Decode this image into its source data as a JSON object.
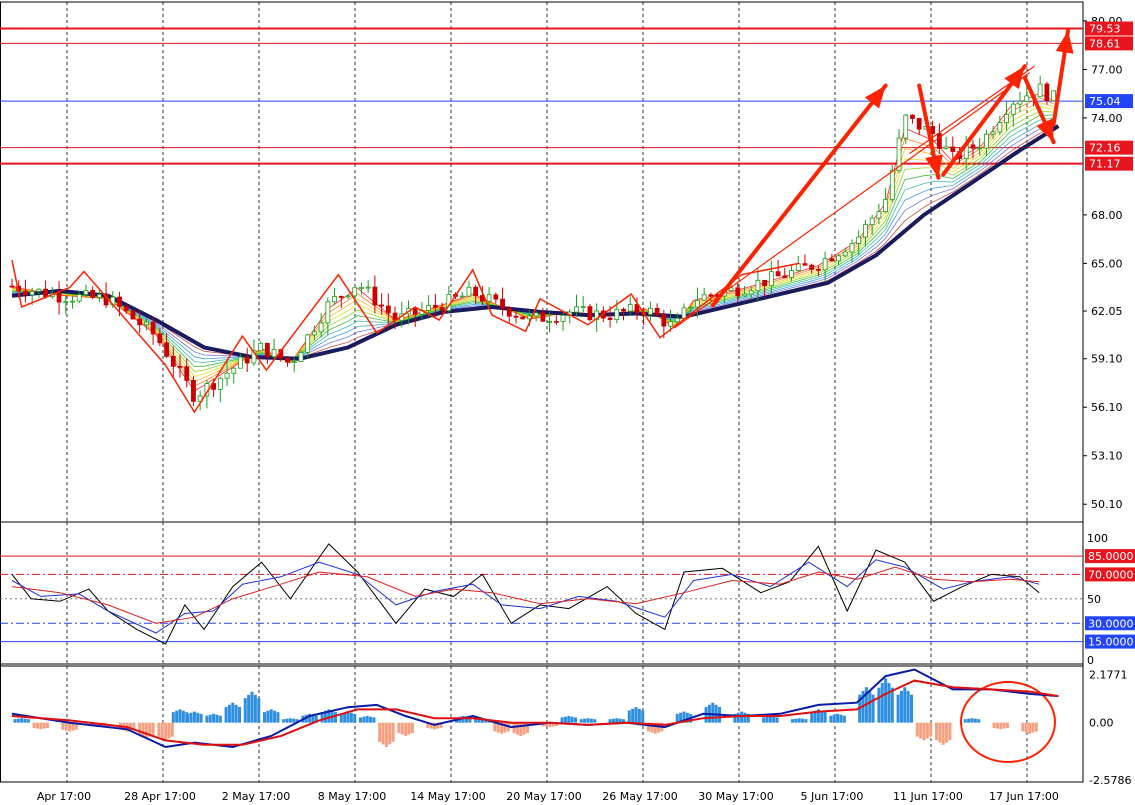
{
  "colors": {
    "background": "#ffffff",
    "grid": "#000000",
    "bull": "#1a9e1a",
    "bear": "#cc0000",
    "baseline_ma": "#1a1a5e",
    "annotation": "#ff2200",
    "level_red": "#e8141e",
    "level_blue": "#2244ff",
    "stoch_main": "#000000",
    "stoch_signal1": "#2030e0",
    "stoch_signal2": "#e02020",
    "macd_pos": "#2e8fe0",
    "macd_neg": "#f5a080",
    "macd_line": "#0a1aa8",
    "macd_signal": "#e01010",
    "tag_red": "#e8141e",
    "tag_blue": "#2244ff"
  },
  "price_axis": {
    "ticks": [
      "80.00",
      "77.00",
      "74.00",
      "68.00",
      "65.00",
      "62.05",
      "59.10",
      "56.10",
      "53.10",
      "50.10"
    ],
    "tick_values": [
      80.0,
      77.0,
      74.0,
      68.0,
      65.0,
      62.05,
      59.1,
      56.1,
      53.1,
      50.1
    ]
  },
  "price_tags": [
    {
      "label": "79.53",
      "value": 79.53,
      "color": "tag_red"
    },
    {
      "label": "78.61",
      "value": 78.61,
      "color": "tag_red"
    },
    {
      "label": "75.04",
      "value": 75.04,
      "color": "tag_blue"
    },
    {
      "label": "72.16",
      "value": 72.16,
      "color": "tag_red"
    },
    {
      "label": "71.17",
      "value": 71.17,
      "color": "tag_red"
    }
  ],
  "stoch_axis": {
    "ticks": [
      "100",
      "50",
      "0"
    ],
    "tick_values": [
      100,
      50,
      0
    ],
    "levels": [
      {
        "label": "85.0000",
        "value": 85,
        "color": "tag_red"
      },
      {
        "label": "70.0000",
        "value": 70,
        "color": "tag_red"
      },
      {
        "label": "30.0000",
        "value": 30,
        "color": "tag_blue"
      },
      {
        "label": "15.0000",
        "value": 15,
        "color": "tag_blue"
      }
    ]
  },
  "macd_axis": {
    "ticks": [
      "2.1771",
      "0.00",
      "-2.5786"
    ],
    "tick_values": [
      2.1771,
      0.0,
      -2.5786
    ]
  },
  "time_axis": {
    "labels": [
      "Apr 17:00",
      "28 Apr 17:00",
      "2 May 17:00",
      "8 May 17:00",
      "14 May 17:00",
      "20 May 17:00",
      "26 May 17:00",
      "30 May 17:00",
      "5 Jun 17:00",
      "11 Jun 17:00",
      "17 Jun 17:00"
    ]
  },
  "chart_data": [
    {
      "type": "candlestick",
      "panel": "price",
      "ylim": [
        49.0,
        80.8
      ],
      "x": [
        "Apr 17:00",
        "28 Apr 17:00",
        "2 May 17:00",
        "8 May 17:00",
        "14 May 17:00",
        "20 May 17:00",
        "26 May 17:00",
        "30 May 17:00",
        "5 Jun 17:00",
        "11 Jun 17:00",
        "17 Jun 17:00"
      ],
      "close_path": [
        [
          0,
          63.6
        ],
        [
          0.5,
          63.0
        ],
        [
          1.0,
          62.8
        ],
        [
          1.5,
          60.5
        ],
        [
          1.9,
          56.8
        ],
        [
          2.3,
          58.5
        ],
        [
          2.6,
          59.8
        ],
        [
          2.9,
          58.8
        ],
        [
          3.3,
          62.5
        ],
        [
          3.6,
          63.8
        ],
        [
          4.0,
          61.5
        ],
        [
          4.4,
          62.3
        ],
        [
          4.8,
          63.2
        ],
        [
          5.0,
          62.6
        ],
        [
          5.4,
          61.5
        ],
        [
          5.8,
          62.0
        ],
        [
          6.2,
          61.8
        ],
        [
          6.6,
          62.2
        ],
        [
          6.9,
          61.0
        ],
        [
          7.1,
          62.8
        ],
        [
          7.6,
          63.5
        ],
        [
          8.0,
          64.2
        ],
        [
          8.4,
          65.0
        ],
        [
          8.8,
          66.5
        ],
        [
          9.1,
          69.0
        ],
        [
          9.3,
          74.0
        ],
        [
          9.6,
          73.0
        ],
        [
          9.8,
          71.5
        ],
        [
          10.1,
          72.5
        ],
        [
          10.4,
          75.0
        ],
        [
          10.7,
          75.8
        ],
        [
          10.9,
          75.04
        ]
      ],
      "baseline_ma_path": [
        [
          0,
          63.0
        ],
        [
          0.5,
          63.3
        ],
        [
          1.0,
          63.0
        ],
        [
          1.5,
          61.5
        ],
        [
          2.0,
          59.8
        ],
        [
          2.5,
          59.2
        ],
        [
          3.0,
          59.1
        ],
        [
          3.5,
          59.8
        ],
        [
          4.0,
          61.2
        ],
        [
          4.5,
          62.0
        ],
        [
          5.0,
          62.3
        ],
        [
          5.5,
          62.0
        ],
        [
          6.0,
          61.8
        ],
        [
          6.5,
          61.9
        ],
        [
          7.0,
          61.7
        ],
        [
          7.5,
          62.4
        ],
        [
          8.0,
          63.1
        ],
        [
          8.5,
          63.8
        ],
        [
          9.0,
          65.5
        ],
        [
          9.5,
          68.0
        ],
        [
          10.0,
          70.0
        ],
        [
          10.5,
          72.0
        ],
        [
          10.9,
          73.5
        ]
      ]
    },
    {
      "type": "line",
      "panel": "stochastic",
      "ylim": [
        0,
        100
      ],
      "series": [
        {
          "color": "stoch_main",
          "values": [
            [
              0,
              70
            ],
            [
              0.2,
              50
            ],
            [
              0.5,
              48
            ],
            [
              0.8,
              58
            ],
            [
              1.0,
              40
            ],
            [
              1.3,
              25
            ],
            [
              1.6,
              13
            ],
            [
              1.8,
              45
            ],
            [
              2.0,
              25
            ],
            [
              2.3,
              60
            ],
            [
              2.6,
              80
            ],
            [
              2.9,
              50
            ],
            [
              3.3,
              95
            ],
            [
              3.6,
              72
            ],
            [
              4.0,
              30
            ],
            [
              4.3,
              58
            ],
            [
              4.6,
              52
            ],
            [
              4.9,
              70
            ],
            [
              5.2,
              30
            ],
            [
              5.5,
              45
            ],
            [
              5.8,
              42
            ],
            [
              6.2,
              60
            ],
            [
              6.5,
              38
            ],
            [
              6.8,
              25
            ],
            [
              7.0,
              72
            ],
            [
              7.4,
              75
            ],
            [
              7.8,
              55
            ],
            [
              8.1,
              64
            ],
            [
              8.4,
              93
            ],
            [
              8.7,
              40
            ],
            [
              9.0,
              90
            ],
            [
              9.3,
              80
            ],
            [
              9.6,
              48
            ],
            [
              9.9,
              60
            ],
            [
              10.2,
              70
            ],
            [
              10.5,
              68
            ],
            [
              10.7,
              55
            ]
          ]
        },
        {
          "color": "stoch_signal1",
          "values": [
            [
              0,
              65
            ],
            [
              0.3,
              52
            ],
            [
              0.7,
              54
            ],
            [
              1.0,
              40
            ],
            [
              1.5,
              22
            ],
            [
              1.8,
              38
            ],
            [
              2.1,
              40
            ],
            [
              2.4,
              62
            ],
            [
              2.8,
              68
            ],
            [
              3.2,
              80
            ],
            [
              3.6,
              70
            ],
            [
              4.0,
              45
            ],
            [
              4.4,
              56
            ],
            [
              4.8,
              62
            ],
            [
              5.1,
              45
            ],
            [
              5.5,
              42
            ],
            [
              5.9,
              52
            ],
            [
              6.3,
              48
            ],
            [
              6.8,
              35
            ],
            [
              7.1,
              65
            ],
            [
              7.5,
              70
            ],
            [
              7.9,
              60
            ],
            [
              8.3,
              80
            ],
            [
              8.7,
              60
            ],
            [
              9.0,
              82
            ],
            [
              9.3,
              76
            ],
            [
              9.7,
              58
            ],
            [
              10.0,
              64
            ],
            [
              10.4,
              68
            ],
            [
              10.7,
              62
            ]
          ]
        },
        {
          "color": "stoch_signal2",
          "values": [
            [
              0,
              60
            ],
            [
              0.5,
              55
            ],
            [
              1.0,
              45
            ],
            [
              1.5,
              30
            ],
            [
              1.9,
              35
            ],
            [
              2.3,
              50
            ],
            [
              2.8,
              62
            ],
            [
              3.2,
              72
            ],
            [
              3.7,
              68
            ],
            [
              4.2,
              52
            ],
            [
              4.6,
              58
            ],
            [
              5.0,
              55
            ],
            [
              5.5,
              46
            ],
            [
              6.0,
              50
            ],
            [
              6.5,
              46
            ],
            [
              7.0,
              55
            ],
            [
              7.5,
              65
            ],
            [
              8.0,
              62
            ],
            [
              8.4,
              72
            ],
            [
              8.8,
              66
            ],
            [
              9.2,
              76
            ],
            [
              9.6,
              66
            ],
            [
              10.0,
              64
            ],
            [
              10.4,
              66
            ],
            [
              10.7,
              64
            ]
          ]
        }
      ]
    },
    {
      "type": "bar",
      "panel": "macd",
      "ylim": [
        -2.5786,
        2.1771
      ],
      "histogram": [
        [
          0.1,
          0.2
        ],
        [
          0.3,
          -0.3
        ],
        [
          0.6,
          -0.4
        ],
        [
          0.9,
          -0.2
        ],
        [
          1.2,
          -0.4
        ],
        [
          1.4,
          -0.7
        ],
        [
          1.6,
          -0.8
        ],
        [
          1.75,
          0.6
        ],
        [
          1.9,
          0.5
        ],
        [
          2.1,
          0.4
        ],
        [
          2.3,
          0.9
        ],
        [
          2.5,
          1.4
        ],
        [
          2.7,
          0.6
        ],
        [
          2.9,
          0.2
        ],
        [
          3.1,
          0.4
        ],
        [
          3.3,
          0.6
        ],
        [
          3.5,
          0.5
        ],
        [
          3.7,
          0.3
        ],
        [
          3.9,
          -1.1
        ],
        [
          4.1,
          -0.6
        ],
        [
          4.4,
          -0.3
        ],
        [
          4.7,
          0.3
        ],
        [
          4.9,
          0.2
        ],
        [
          5.1,
          -0.5
        ],
        [
          5.3,
          -0.6
        ],
        [
          5.6,
          -0.2
        ],
        [
          5.8,
          0.3
        ],
        [
          6.0,
          0.2
        ],
        [
          6.3,
          0.2
        ],
        [
          6.5,
          0.7
        ],
        [
          6.7,
          -0.5
        ],
        [
          7.0,
          0.5
        ],
        [
          7.3,
          0.9
        ],
        [
          7.6,
          0.5
        ],
        [
          7.9,
          0.3
        ],
        [
          8.2,
          0.2
        ],
        [
          8.4,
          0.6
        ],
        [
          8.6,
          0.4
        ],
        [
          8.9,
          1.6
        ],
        [
          9.1,
          2.0
        ],
        [
          9.3,
          1.6
        ],
        [
          9.5,
          -0.8
        ],
        [
          9.7,
          -1.0
        ],
        [
          10.0,
          0.2
        ],
        [
          10.3,
          -0.3
        ],
        [
          10.6,
          -0.5
        ]
      ],
      "series": [
        {
          "color": "macd_line",
          "values": [
            [
              0,
              0.4
            ],
            [
              0.6,
              0.0
            ],
            [
              1.2,
              -0.3
            ],
            [
              1.6,
              -1.1
            ],
            [
              1.9,
              -0.9
            ],
            [
              2.3,
              -1.1
            ],
            [
              2.7,
              -0.6
            ],
            [
              3.1,
              0.3
            ],
            [
              3.5,
              0.7
            ],
            [
              3.8,
              0.8
            ],
            [
              4.1,
              0.3
            ],
            [
              4.4,
              -0.1
            ],
            [
              4.8,
              0.3
            ],
            [
              5.2,
              -0.2
            ],
            [
              5.6,
              0.0
            ],
            [
              6.0,
              -0.1
            ],
            [
              6.4,
              0.0
            ],
            [
              6.8,
              -0.2
            ],
            [
              7.2,
              0.4
            ],
            [
              7.6,
              0.3
            ],
            [
              8.0,
              0.4
            ],
            [
              8.4,
              0.8
            ],
            [
              8.8,
              0.9
            ],
            [
              9.1,
              2.1
            ],
            [
              9.4,
              2.4
            ],
            [
              9.8,
              1.5
            ],
            [
              10.2,
              1.5
            ],
            [
              10.6,
              1.3
            ],
            [
              10.9,
              1.2
            ]
          ]
        },
        {
          "color": "macd_signal",
          "values": [
            [
              0,
              0.3
            ],
            [
              0.6,
              0.1
            ],
            [
              1.2,
              -0.2
            ],
            [
              1.6,
              -0.8
            ],
            [
              2.0,
              -1.0
            ],
            [
              2.4,
              -1.0
            ],
            [
              2.8,
              -0.6
            ],
            [
              3.2,
              0.1
            ],
            [
              3.6,
              0.6
            ],
            [
              4.0,
              0.6
            ],
            [
              4.4,
              0.2
            ],
            [
              4.8,
              0.2
            ],
            [
              5.2,
              0.0
            ],
            [
              5.6,
              0.0
            ],
            [
              6.0,
              -0.1
            ],
            [
              6.4,
              0.0
            ],
            [
              6.8,
              -0.1
            ],
            [
              7.2,
              0.2
            ],
            [
              7.6,
              0.3
            ],
            [
              8.0,
              0.3
            ],
            [
              8.4,
              0.5
            ],
            [
              8.8,
              0.6
            ],
            [
              9.1,
              1.3
            ],
            [
              9.4,
              1.9
            ],
            [
              9.8,
              1.6
            ],
            [
              10.2,
              1.5
            ],
            [
              10.6,
              1.4
            ],
            [
              10.9,
              1.2
            ]
          ]
        }
      ]
    }
  ]
}
